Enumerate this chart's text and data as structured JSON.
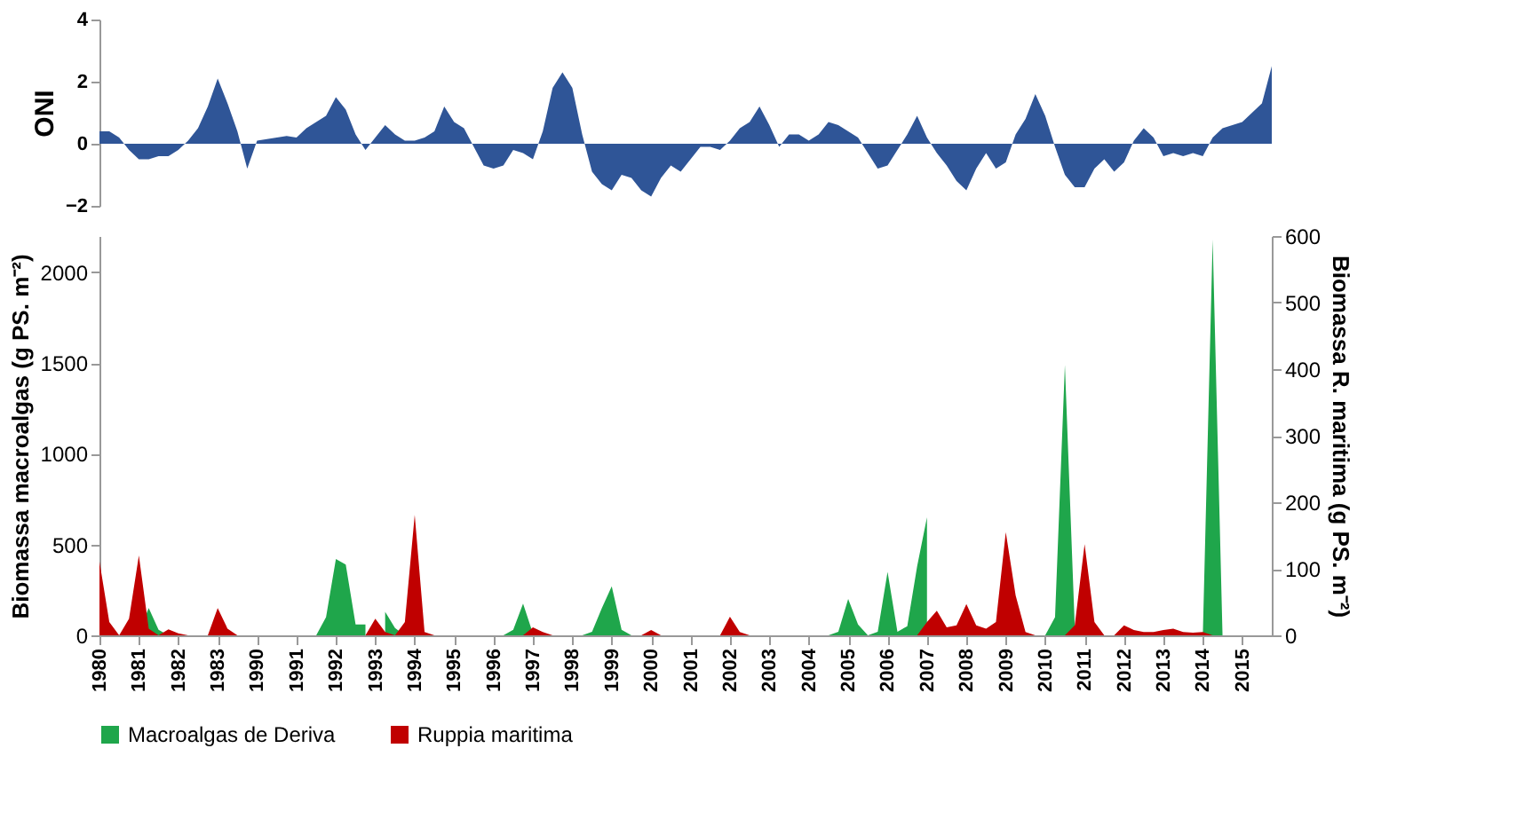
{
  "chart_data": [
    {
      "type": "area",
      "ylabel": "ONI",
      "color": "#2f5597",
      "ylim": [
        -2,
        4
      ],
      "yticks": [
        -2,
        0,
        2,
        4
      ],
      "tick_labels": "y",
      "grid": false,
      "categories": [
        "1980",
        null,
        null,
        null,
        "1981",
        null,
        null,
        null,
        "1982",
        null,
        null,
        null,
        "1983",
        null,
        null,
        null,
        "1990",
        null,
        null,
        null,
        "1991",
        null,
        null,
        null,
        "1992",
        null,
        null,
        null,
        "1993",
        null,
        null,
        null,
        "1994",
        null,
        null,
        null,
        "1995",
        null,
        null,
        null,
        "1996",
        null,
        null,
        null,
        "1997",
        null,
        null,
        null,
        "1998",
        null,
        null,
        null,
        "1999",
        null,
        null,
        null,
        "2000",
        null,
        null,
        null,
        "2001",
        null,
        null,
        null,
        "2002",
        null,
        null,
        null,
        "2003",
        null,
        null,
        null,
        "2004",
        null,
        null,
        null,
        "2005",
        null,
        null,
        null,
        "2006",
        null,
        null,
        null,
        "2007",
        null,
        null,
        null,
        "2008",
        null,
        null,
        null,
        "2009",
        null,
        null,
        null,
        "2010",
        null,
        null,
        null,
        "2011",
        null,
        null,
        null,
        "2012",
        null,
        null,
        null,
        "2013",
        null,
        null,
        null,
        "2014",
        null,
        null,
        null,
        "2015",
        null,
        null,
        null
      ],
      "values": [
        0.4,
        0.4,
        0.2,
        -0.2,
        -0.5,
        -0.5,
        -0.4,
        -0.4,
        -0.2,
        0.1,
        0.5,
        1.2,
        2.1,
        1.3,
        0.4,
        -0.8,
        0.1,
        0.15,
        0.2,
        0.25,
        0.2,
        0.5,
        0.7,
        0.9,
        1.5,
        1.1,
        0.3,
        -0.2,
        0.2,
        0.6,
        0.3,
        0.1,
        0.1,
        0.2,
        0.4,
        1.2,
        0.7,
        0.5,
        -0.1,
        -0.7,
        -0.8,
        -0.7,
        -0.2,
        -0.3,
        -0.5,
        0.4,
        1.8,
        2.3,
        1.8,
        0.3,
        -0.9,
        -1.3,
        -1.5,
        -1.0,
        -1.1,
        -1.5,
        -1.7,
        -1.1,
        -0.7,
        -0.9,
        -0.5,
        -0.1,
        -0.1,
        -0.2,
        0.1,
        0.5,
        0.7,
        1.2,
        0.6,
        -0.1,
        0.3,
        0.3,
        0.1,
        0.3,
        0.7,
        0.6,
        0.4,
        0.2,
        -0.3,
        -0.8,
        -0.7,
        -0.2,
        0.3,
        0.9,
        0.2,
        -0.3,
        -0.7,
        -1.2,
        -1.5,
        -0.8,
        -0.3,
        -0.8,
        -0.6,
        0.3,
        0.8,
        1.6,
        0.9,
        -0.1,
        -1.0,
        -1.4,
        -1.4,
        -0.8,
        -0.5,
        -0.9,
        -0.6,
        0.1,
        0.5,
        0.2,
        -0.4,
        -0.3,
        -0.4,
        -0.3,
        -0.4,
        0.2,
        0.5,
        0.6,
        0.7,
        1.0,
        1.3,
        2.5
      ]
    },
    {
      "type": "area",
      "ylabel": "Biomassa macroalgas (g PS. m⁻²)",
      "y2label": "Biomassa R. maritima (g PS. m⁻²)",
      "ylim": [
        0,
        2200
      ],
      "yticks": [
        0,
        500,
        1000,
        1500,
        2000
      ],
      "y2lim": [
        0,
        600
      ],
      "y2ticks": [
        0,
        100,
        200,
        300,
        400,
        500,
        600
      ],
      "legend": "bottom",
      "grid": false,
      "categories": [
        "1980",
        null,
        null,
        null,
        "1981",
        null,
        null,
        null,
        "1982",
        null,
        null,
        null,
        "1983",
        null,
        null,
        null,
        "1990",
        null,
        null,
        null,
        "1991",
        null,
        null,
        null,
        "1992",
        null,
        null,
        null,
        "1993",
        null,
        null,
        null,
        "1994",
        null,
        null,
        null,
        "1995",
        null,
        null,
        null,
        "1996",
        null,
        null,
        null,
        "1997",
        null,
        null,
        null,
        "1998",
        null,
        null,
        null,
        "1999",
        null,
        null,
        null,
        "2000",
        null,
        null,
        null,
        "2001",
        null,
        null,
        null,
        "2002",
        null,
        null,
        null,
        "2003",
        null,
        null,
        null,
        "2004",
        null,
        null,
        null,
        "2005",
        null,
        null,
        null,
        "2006",
        null,
        null,
        null,
        "2007",
        null,
        null,
        null,
        "2008",
        null,
        null,
        null,
        "2009",
        null,
        null,
        null,
        "2010",
        null,
        null,
        null,
        "2011",
        null,
        null,
        null,
        "2012",
        null,
        null,
        null,
        "2013",
        null,
        null,
        null,
        "2014",
        null,
        null,
        null,
        "2015",
        null,
        null,
        null
      ],
      "series": [
        {
          "name": "Macroalgas de Deriva",
          "color": "#1fa64b",
          "values": [
            0,
            0,
            0,
            0,
            20,
            150,
            30,
            0,
            0,
            0,
            0,
            0,
            0,
            0,
            0,
            0,
            0,
            0,
            0,
            0,
            0,
            0,
            0,
            100,
            420,
            390,
            60,
            60,
            null,
            130,
            40,
            0,
            0,
            0,
            0,
            0,
            0,
            0,
            0,
            0,
            0,
            0,
            30,
            175,
            10,
            0,
            0,
            0,
            0,
            0,
            20,
            150,
            270,
            30,
            0,
            0,
            0,
            0,
            0,
            0,
            0,
            0,
            0,
            0,
            0,
            0,
            0,
            0,
            0,
            0,
            0,
            0,
            0,
            0,
            0,
            20,
            200,
            60,
            0,
            20,
            350,
            20,
            50,
            380,
            650,
            null,
            0,
            0,
            0,
            0,
            0,
            0,
            0,
            0,
            0,
            0,
            0,
            100,
            1490,
            50,
            0,
            0,
            0,
            0,
            0,
            0,
            0,
            0,
            0,
            0,
            0,
            0,
            0,
            2180,
            0,
            0,
            0,
            0,
            0,
            0
          ]
        },
        {
          "name": "Ruppia maritima",
          "color": "#c00000",
          "axis": "y2",
          "values": [
            111,
            20,
            0,
            25,
            120,
            10,
            0,
            9,
            3,
            0,
            0,
            0,
            41,
            10,
            0,
            0,
            0,
            0,
            0,
            0,
            0,
            0,
            0,
            0,
            0,
            0,
            0,
            0,
            25,
            5,
            0,
            20,
            181,
            5,
            0,
            0,
            0,
            0,
            0,
            0,
            0,
            0,
            0,
            0,
            12,
            5,
            0,
            0,
            0,
            0,
            0,
            0,
            0,
            0,
            0,
            0,
            8,
            0,
            0,
            0,
            0,
            0,
            0,
            0,
            28,
            5,
            0,
            0,
            0,
            0,
            0,
            0,
            0,
            0,
            0,
            0,
            0,
            0,
            0,
            0,
            0,
            0,
            0,
            0,
            20,
            37,
            12,
            15,
            47,
            15,
            10,
            20,
            155,
            60,
            5,
            0,
            0,
            0,
            0,
            15,
            137,
            20,
            0,
            0,
            15,
            8,
            5,
            5,
            8,
            10,
            5,
            4,
            5,
            0,
            0,
            0,
            0,
            0,
            0,
            0
          ]
        }
      ]
    }
  ]
}
